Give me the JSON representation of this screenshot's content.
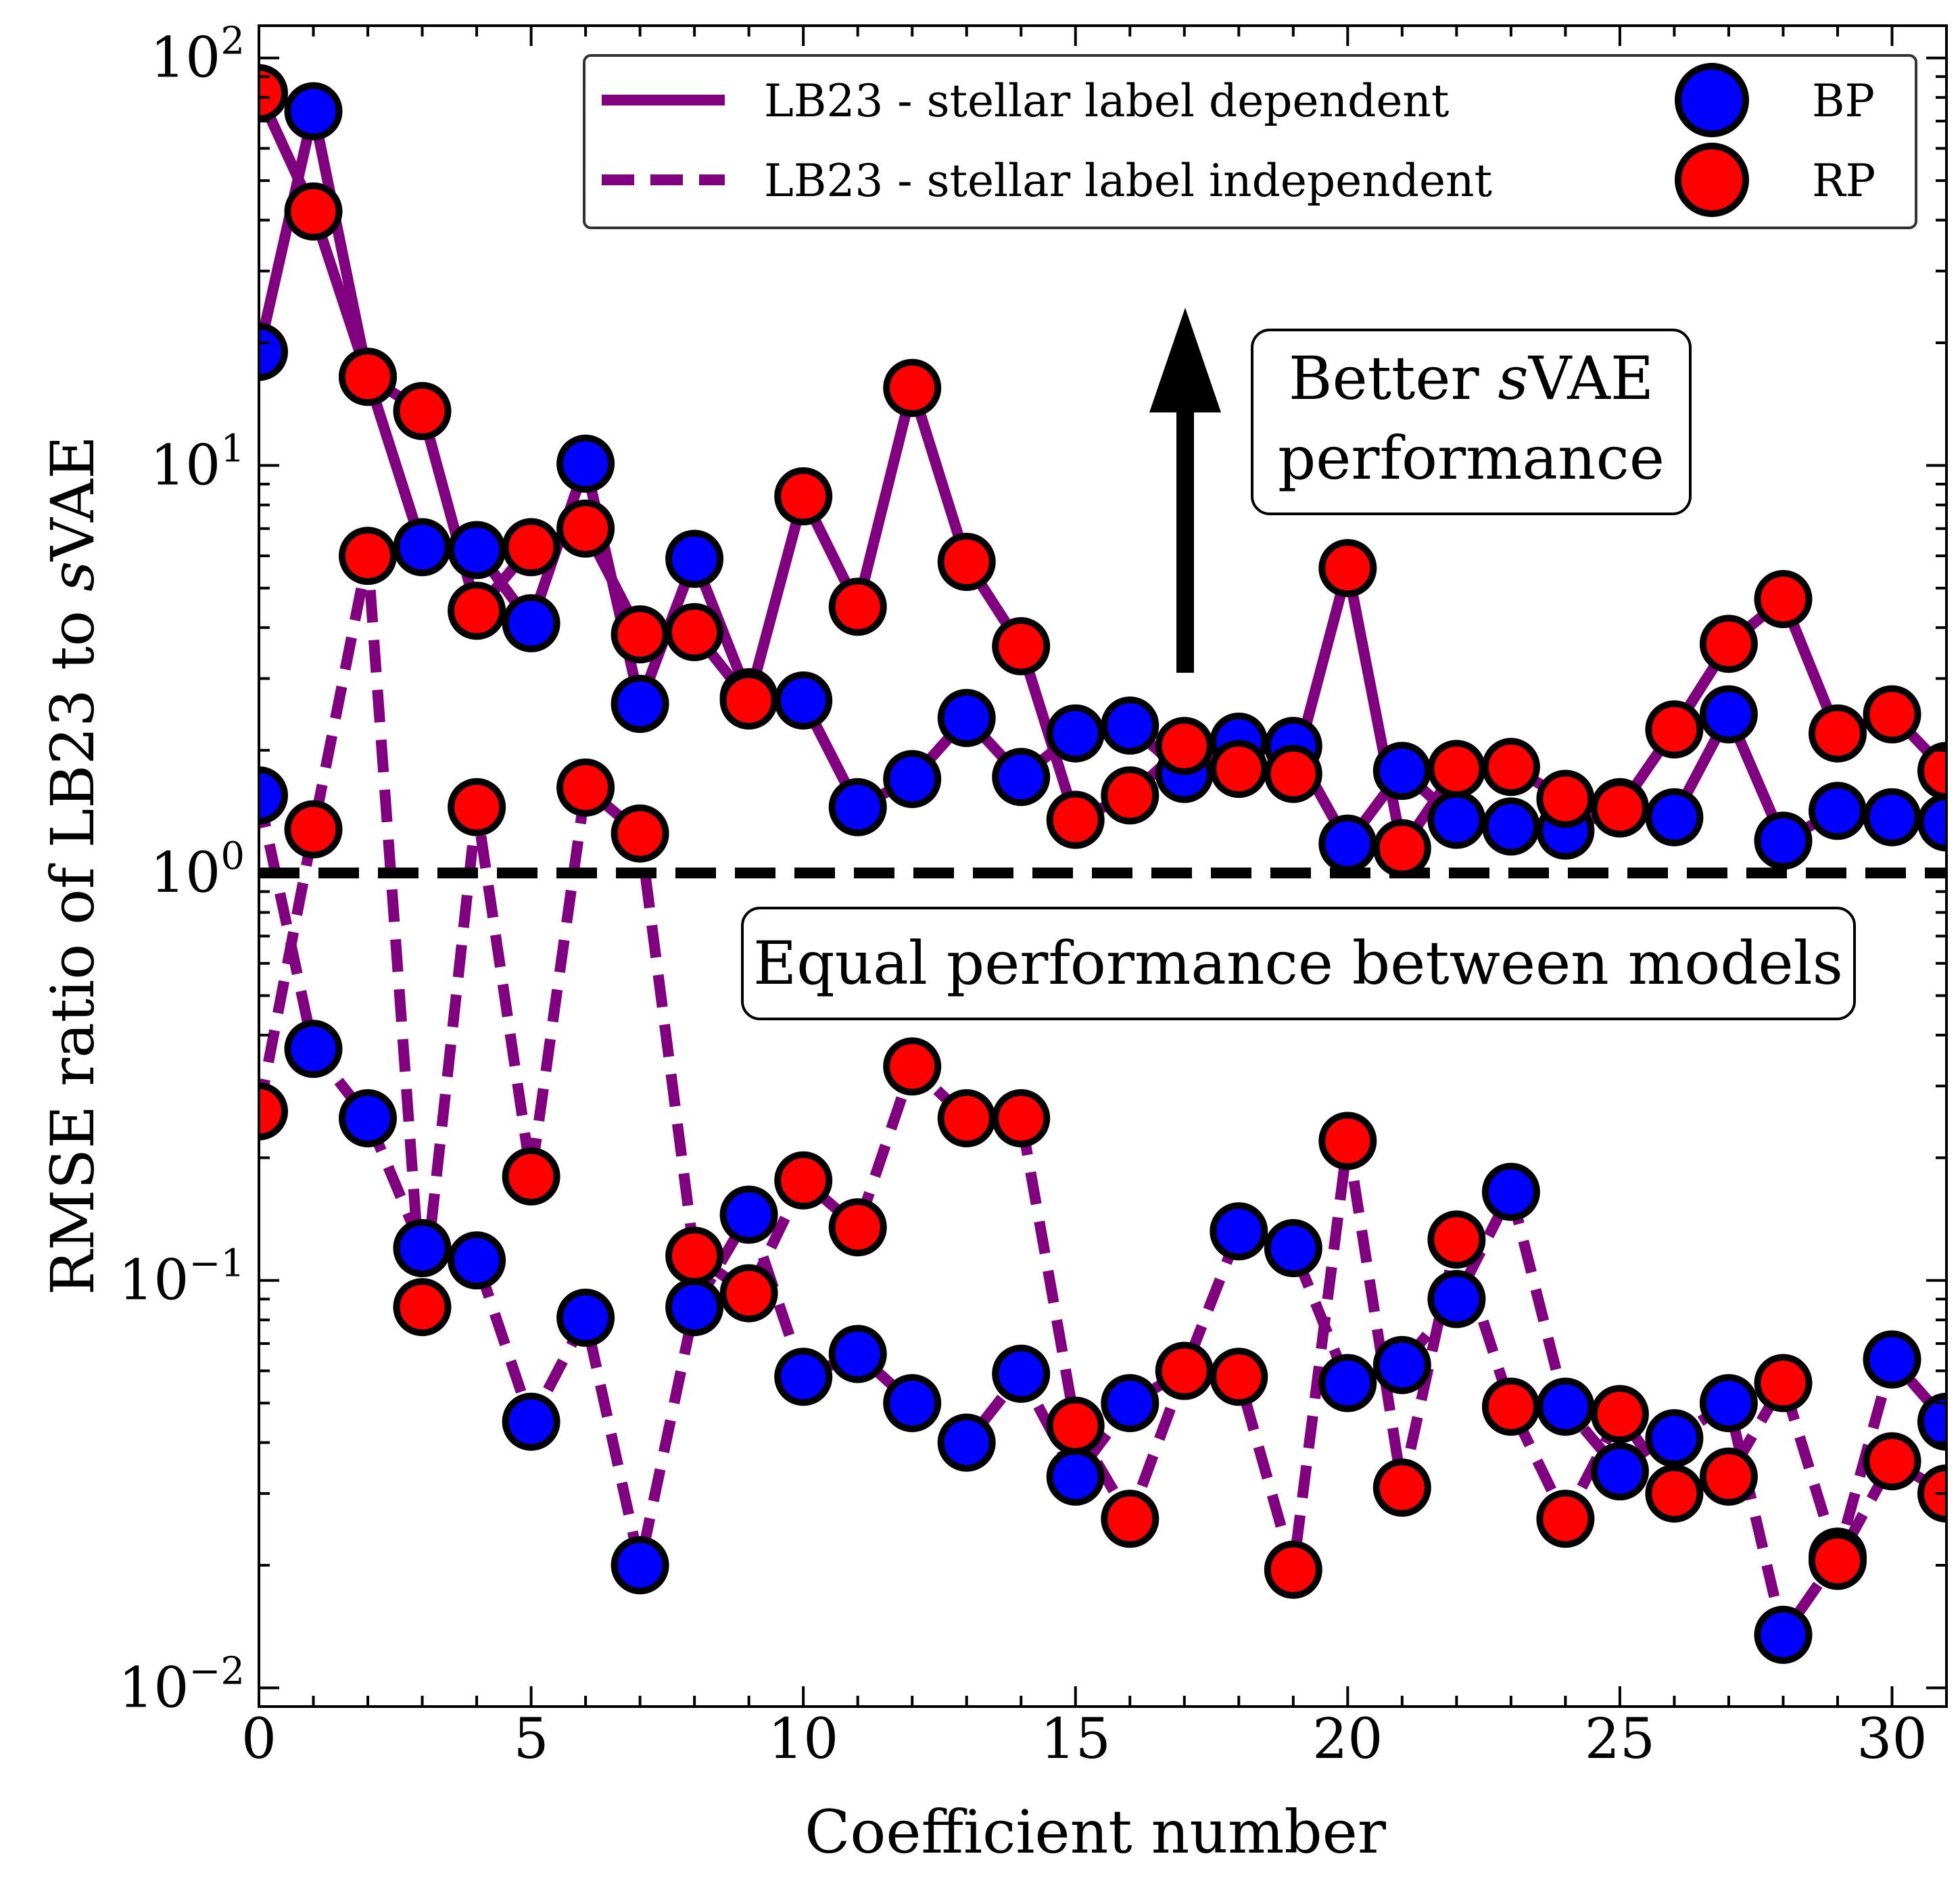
{
  "chart_data": {
    "type": "line",
    "xlabel": "Coefficient number",
    "ylabel_prefix": "RMSE ratio of LB23 to ",
    "ylabel_italic": "s",
    "ylabel_suffix": "VAE",
    "xlim": [
      0,
      31
    ],
    "ylim": [
      0.009,
      120
    ],
    "yscale": "log",
    "x_ticks": [
      0,
      5,
      10,
      15,
      20,
      25,
      30
    ],
    "x_tick_labels": [
      "0",
      "5",
      "10",
      "15",
      "20",
      "25",
      "30"
    ],
    "y_ticks": [
      0.01,
      0.1,
      1,
      10,
      100
    ],
    "y_tick_labels": [
      {
        "base": "10",
        "exp": "−2"
      },
      {
        "base": "10",
        "exp": "−1"
      },
      {
        "base": "10",
        "exp": "0"
      },
      {
        "base": "10",
        "exp": "1"
      },
      {
        "base": "10",
        "exp": "2"
      }
    ],
    "grid": false,
    "legend_position": "top",
    "legend": {
      "line_entries": [
        {
          "label": "LB23 - stellar label dependent",
          "style": "solid"
        },
        {
          "label": "LB23 - stellar label independent",
          "style": "dashed"
        }
      ],
      "marker_entries": [
        {
          "label": "BP",
          "color": "#0000ff"
        },
        {
          "label": "RP",
          "color": "#ff0000"
        }
      ]
    },
    "colors": {
      "line": "#800080",
      "bp": "#0000ff",
      "rp": "#ff0000",
      "reference": "#000000"
    },
    "x": [
      0,
      1,
      2,
      3,
      4,
      5,
      6,
      7,
      8,
      9,
      10,
      11,
      12,
      13,
      14,
      15,
      16,
      17,
      18,
      19,
      20,
      21,
      22,
      23,
      24,
      25,
      26,
      27,
      28,
      29,
      30,
      31
    ],
    "series": [
      {
        "name": "BP",
        "model": "LB23 - stellar label dependent",
        "style": "solid",
        "marker": "bp",
        "values": [
          19,
          74,
          16.5,
          6.3,
          6.2,
          4.1,
          10.1,
          2.6,
          5.9,
          2.7,
          2.65,
          1.45,
          1.7,
          2.4,
          1.72,
          2.2,
          2.3,
          1.75,
          2.1,
          2.05,
          1.18,
          1.78,
          1.35,
          1.3,
          1.27,
          1.45,
          1.37,
          2.45,
          1.2,
          1.42,
          1.37,
          1.33
        ]
      },
      {
        "name": "RP",
        "model": "LB23 - stellar label dependent",
        "style": "solid",
        "marker": "rp",
        "values": [
          82,
          42,
          16.5,
          13.6,
          4.4,
          6.3,
          7.0,
          3.85,
          3.9,
          2.65,
          8.4,
          4.5,
          15.5,
          5.8,
          3.6,
          1.35,
          1.55,
          2.05,
          1.8,
          1.75,
          5.6,
          1.15,
          1.8,
          1.82,
          1.52,
          1.44,
          2.25,
          3.65,
          4.7,
          2.2,
          2.45,
          1.78
        ]
      },
      {
        "name": "BP",
        "model": "LB23 - stellar label independent",
        "style": "dashed",
        "marker": "bp",
        "values": [
          1.55,
          0.37,
          0.25,
          0.12,
          0.112,
          0.045,
          0.081,
          0.02,
          0.086,
          0.145,
          0.058,
          0.066,
          0.05,
          0.04,
          0.059,
          0.033,
          0.05,
          0.06,
          0.132,
          0.12,
          0.056,
          0.062,
          0.09,
          0.165,
          0.049,
          0.034,
          0.041,
          0.05,
          0.0135,
          0.021,
          0.064,
          0.045
        ]
      },
      {
        "name": "RP",
        "model": "LB23 - stellar label independent",
        "style": "dashed",
        "marker": "rp",
        "values": [
          0.26,
          1.28,
          6.0,
          0.086,
          1.45,
          0.18,
          1.62,
          1.25,
          0.115,
          0.093,
          0.176,
          0.135,
          0.335,
          0.25,
          0.25,
          0.044,
          0.026,
          0.06,
          0.058,
          0.0195,
          0.22,
          0.031,
          0.126,
          0.049,
          0.026,
          0.047,
          0.03,
          0.033,
          0.056,
          0.0205,
          0.036,
          0.03
        ]
      }
    ],
    "reference_line": {
      "y": 1
    },
    "annotations": {
      "better_prefix": "Better ",
      "better_italic": "s",
      "better_suffix": "VAE",
      "better_line2": "performance",
      "equal": "Equal performance between models"
    }
  }
}
